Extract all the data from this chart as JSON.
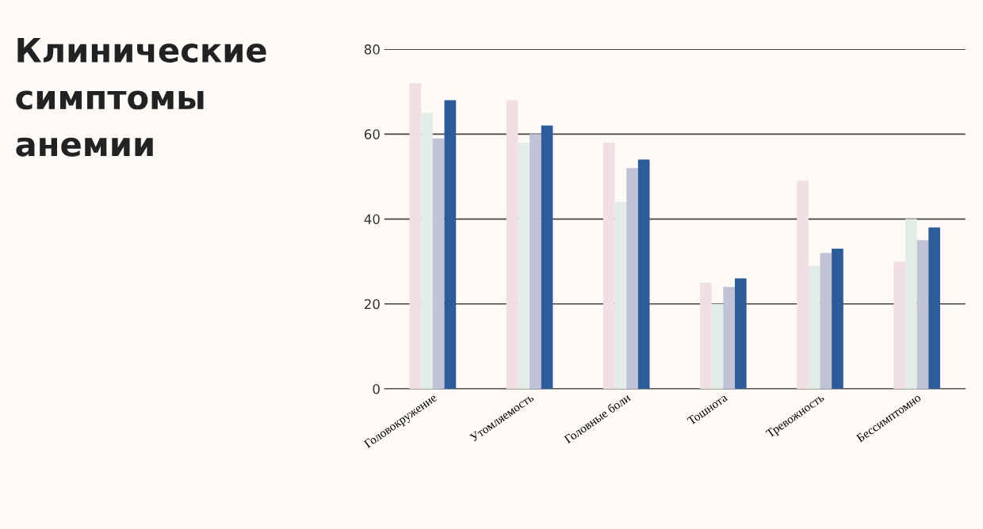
{
  "chart_data": {
    "type": "bar",
    "title": "Клинические симптомы анемии",
    "categories": [
      "Головокружение",
      "Утомляемость",
      "Головные боли",
      "Тошнота",
      "Тревожность",
      "Бессимптомно"
    ],
    "series": [
      {
        "color": "#f2dfe3",
        "values": [
          72,
          68,
          58,
          25,
          49,
          30
        ]
      },
      {
        "color": "#e3ece6",
        "values": [
          65,
          58,
          44,
          20,
          29,
          40
        ]
      },
      {
        "color": "#c2c2d6",
        "values": [
          59,
          60,
          52,
          24,
          32,
          35
        ]
      },
      {
        "color": "#2e5b9a",
        "values": [
          68,
          62,
          54,
          26,
          33,
          38
        ]
      }
    ],
    "ylim": [
      0,
      80
    ],
    "yticks": [
      0,
      20,
      40,
      60,
      80
    ],
    "grid": "y"
  }
}
